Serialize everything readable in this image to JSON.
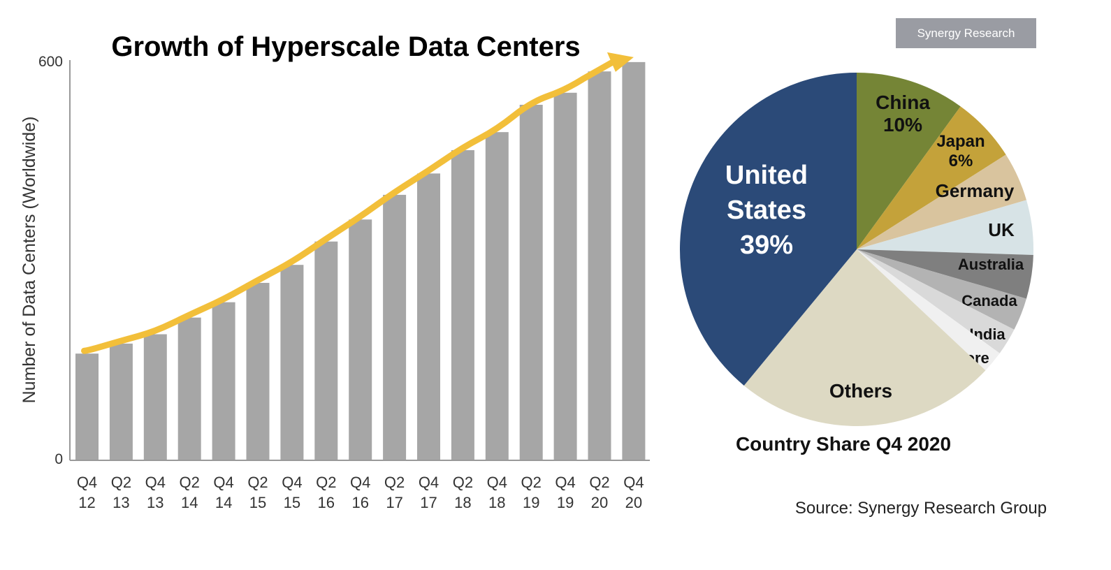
{
  "badge": "Synergy Research",
  "source": "Source: Synergy Research Group",
  "chart_data": [
    {
      "type": "bar",
      "title": "Growth of Hyperscale Data Centers",
      "ylabel": "Number of Data Centers (Worldwide)",
      "xlabel": "",
      "ylim": [
        0,
        600
      ],
      "yticks": [
        "0",
        "600"
      ],
      "grid": false,
      "bar_color": "#a6a6a6",
      "trend_arrow_color": "#f2bf3a",
      "categories": [
        [
          "Q4",
          "12"
        ],
        [
          "Q2",
          "13"
        ],
        [
          "Q4",
          "13"
        ],
        [
          "Q2",
          "14"
        ],
        [
          "Q4",
          "14"
        ],
        [
          "Q2",
          "15"
        ],
        [
          "Q4",
          "15"
        ],
        [
          "Q2",
          "16"
        ],
        [
          "Q4",
          "16"
        ],
        [
          "Q2",
          "17"
        ],
        [
          "Q4",
          "17"
        ],
        [
          "Q2",
          "18"
        ],
        [
          "Q4",
          "18"
        ],
        [
          "Q2",
          "19"
        ],
        [
          "Q4",
          "19"
        ],
        [
          "Q2",
          "20"
        ],
        [
          "Q4",
          "20"
        ]
      ],
      "values": [
        160,
        175,
        189,
        214,
        237,
        266,
        293,
        328,
        361,
        398,
        430,
        465,
        492,
        533,
        551,
        583,
        597
      ]
    },
    {
      "type": "pie",
      "title": "Country Share Q4 2020",
      "slices": [
        {
          "label": "United States",
          "pct_label": "39%",
          "value": 39,
          "color": "#2b4a78"
        },
        {
          "label": "China",
          "pct_label": "10%",
          "value": 10,
          "color": "#758536"
        },
        {
          "label": "Japan",
          "pct_label": "6%",
          "value": 6,
          "color": "#c4a23a"
        },
        {
          "label": "Germany",
          "value": 4.5,
          "color": "#d9c49e"
        },
        {
          "label": "UK",
          "value": 5,
          "color": "#d7e3e6"
        },
        {
          "label": "Australia",
          "value": 4,
          "color": "#7f7f7f"
        },
        {
          "label": "Canada",
          "value": 3,
          "color": "#b3b3b3"
        },
        {
          "label": "India",
          "value": 2.5,
          "color": "#d9d9d9"
        },
        {
          "label": "Singapore",
          "value": 2,
          "color": "#f0f0f0"
        },
        {
          "label": "Others",
          "value": 24,
          "color": "#ddd9c3"
        }
      ]
    }
  ]
}
